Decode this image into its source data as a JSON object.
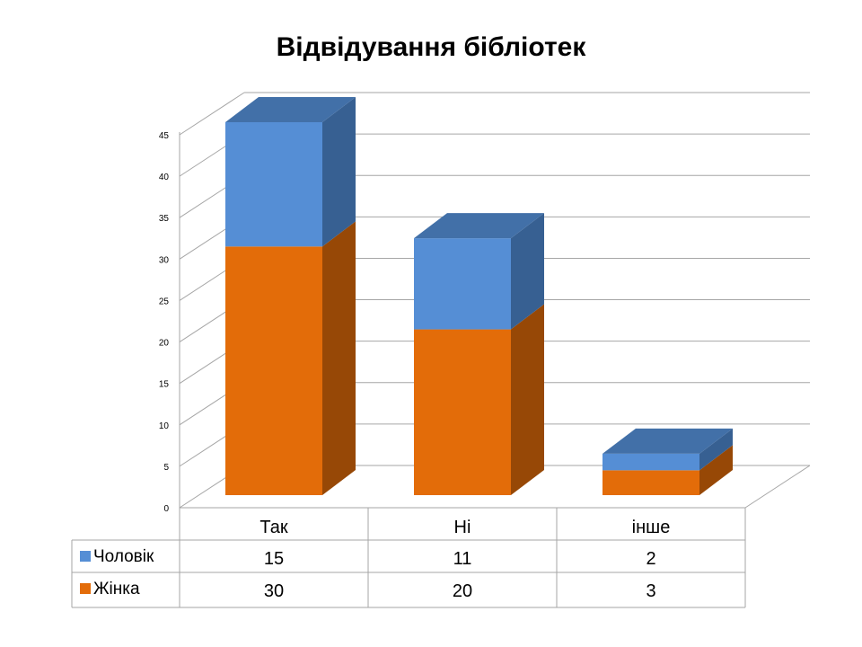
{
  "chart_data": {
    "type": "bar",
    "stacked": true,
    "title": "Відвідування бібліотек",
    "categories": [
      "Так",
      "Ні",
      "інше"
    ],
    "series": [
      {
        "name": "Жінка",
        "values": [
          30,
          20,
          3
        ],
        "color": "#E36C09"
      },
      {
        "name": "Чоловік",
        "values": [
          15,
          11,
          2
        ],
        "color": "#558ED5"
      }
    ],
    "ylim": [
      0,
      45
    ],
    "yticks": [
      0,
      5,
      10,
      15,
      20,
      25,
      30,
      35,
      40,
      45
    ],
    "grid": true,
    "legend_placement": "data-table",
    "data_table": {
      "rows": [
        {
          "series": "Чоловік",
          "values": [
            "15",
            "11",
            "2"
          ]
        },
        {
          "series": "Жінка",
          "values": [
            "30",
            "20",
            "3"
          ]
        }
      ]
    },
    "colors": {
      "female_front": "#E36C09",
      "female_side": "#974806",
      "female_top": "#B75A0B",
      "male_front": "#558ED5",
      "male_side": "#376092",
      "male_top": "#4270A8"
    }
  }
}
